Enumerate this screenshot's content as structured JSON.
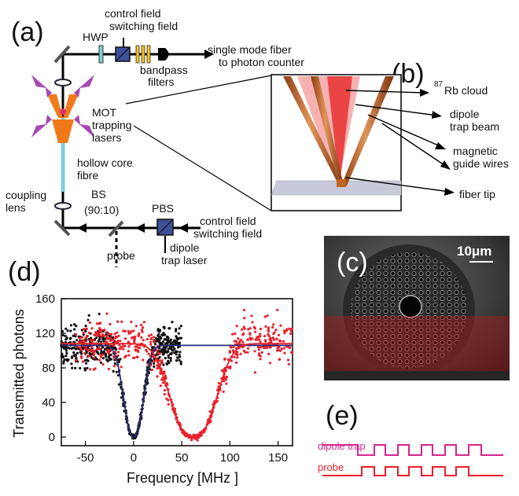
{
  "panels": {
    "a": "(a)",
    "b": "(b)",
    "c": "(c)",
    "d": "(d)",
    "e": "(e)"
  },
  "setup_labels": {
    "hwp": "HWP",
    "control_switch_top_1": "control field",
    "control_switch_top_2": "switching field",
    "bandpass_1": "bandpass",
    "bandpass_2": "filters",
    "fiber_out_1": "single mode fiber",
    "fiber_out_2": "to photon counter",
    "mot_1": "MOT",
    "mot_2": "trapping",
    "mot_3": "lasers",
    "hollow_1": "hollow core",
    "hollow_2": "fibre",
    "coupling_1": "coupling",
    "coupling_2": "lens",
    "bs_1": "BS",
    "bs_2": "(90:10)",
    "pbs": "PBS",
    "probe": "probe",
    "control_switch_bottom_1": "control field",
    "control_switch_bottom_2": "switching field",
    "dipole_laser_1": "dipole",
    "dipole_laser_2": "trap laser"
  },
  "inset_labels": {
    "rb_sup": "87",
    "rb": "Rb cloud",
    "dipole_1": "dipole",
    "dipole_2": "trap beam",
    "magnetic_1": "magnetic",
    "magnetic_2": "guide wires",
    "fiber_tip": "fiber tip"
  },
  "micrograph": {
    "scale_bar": "10μm"
  },
  "timing": {
    "dipole_trap": "dipole trap",
    "probe": "probe",
    "dipole_color": "#d6258e",
    "probe_color": "#e8202a"
  },
  "chart_data": {
    "type": "scatter",
    "xlabel": "Frequency [MHz ]",
    "ylabel": "Transmitted photons",
    "xlim": [
      -75,
      165
    ],
    "ylim": [
      -10,
      160
    ],
    "xticks": [
      -50,
      0,
      50,
      100,
      150
    ],
    "yticks": [
      0,
      40,
      80,
      120,
      160
    ],
    "series": [
      {
        "color": "#111111",
        "fit_color": "#2b2f7a",
        "fit": {
          "baseline": 106,
          "depth": 106,
          "center": 0,
          "halfwidth": 13.5,
          "power": 2.3
        },
        "range": [
          -75,
          50
        ],
        "noise": 11
      },
      {
        "color": "#e8202a",
        "fit_color": "#e8202a",
        "fit": {
          "baseline": 108,
          "depth": 108,
          "center": 62,
          "halfwidth": 30.5,
          "power": 2.6
        },
        "range": [
          -60,
          165
        ],
        "noise": 12
      }
    ]
  }
}
